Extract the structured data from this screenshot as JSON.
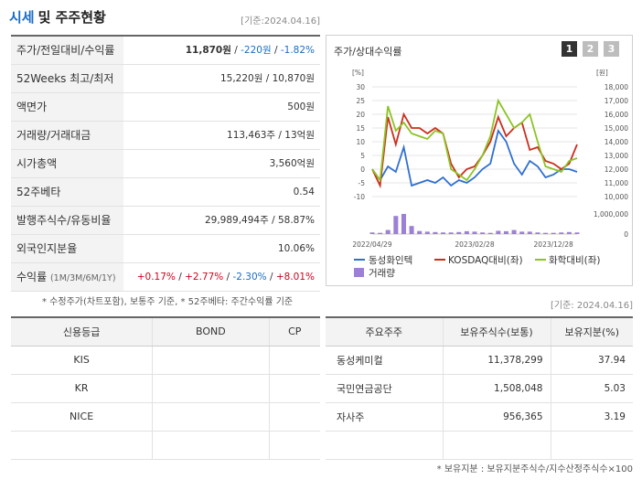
{
  "header": {
    "title_main": "시세",
    "title_rest": "및 주주현황",
    "date": "[기준:2024.04.16]"
  },
  "info_rows": [
    {
      "label": "주가/전일대비/수익률",
      "v1": "11,870원",
      "v2": "-220원",
      "v3": "-1.82%"
    },
    {
      "label": "52Weeks 최고/최저",
      "value": "15,220원 / 10,870원"
    },
    {
      "label": "액면가",
      "value": "500원"
    },
    {
      "label": "거래량/거래대금",
      "value": "113,463주 / 13억원"
    },
    {
      "label": "시가총액",
      "value": "3,560억원"
    },
    {
      "label": "52주베타",
      "value": "0.54"
    },
    {
      "label": "발행주식수/유동비율",
      "value": "29,989,494주 / 58.87%"
    },
    {
      "label": "외국인지분율",
      "value": "10.06%"
    },
    {
      "label": "수익률",
      "label_sub": "(1M/3M/6M/1Y)",
      "r1": "+0.17%",
      "r2": "+2.77%",
      "r3": "-2.30%",
      "r4": "+8.01%"
    }
  ],
  "note1": "* 수정주가(차트포함), 보통주 기준, * 52주베타: 주간수익률 기준",
  "chart": {
    "title": "주가/상대수익률",
    "tabs": [
      "1",
      "2",
      "3"
    ],
    "left_unit": "[%]",
    "right_unit": "[원]",
    "legend": {
      "s1": "동성화인텍",
      "s2": "KOSDAQ대비(좌)",
      "s3": "화학대비(좌)",
      "s4": "거래량"
    }
  },
  "chart_data": {
    "type": "line",
    "x_ticks": [
      "2022/04/29",
      "2023/02/28",
      "2023/12/28"
    ],
    "left_axis": {
      "ticks": [
        "30",
        "25",
        "20",
        "15",
        "10",
        "5",
        "0",
        "-5",
        "-10"
      ],
      "range": [
        -10,
        30
      ]
    },
    "right_axis": {
      "ticks": [
        "18,000",
        "17,000",
        "16,000",
        "15,000",
        "14,000",
        "13,000",
        "12,000",
        "11,000",
        "10,000"
      ],
      "range": [
        10000,
        18000
      ]
    },
    "volume_axis": {
      "ticks": [
        "1,000,000",
        "0"
      ]
    },
    "series": [
      {
        "name": "동성화인텍",
        "color": "#2f6fd0",
        "values": [
          0,
          -4,
          1,
          -1,
          8,
          -6,
          -5,
          -4,
          -5,
          -3,
          -6,
          -4,
          -5,
          -3,
          0,
          2,
          14,
          10,
          2,
          -2,
          3,
          1,
          -3,
          -2,
          0,
          0,
          -1
        ]
      },
      {
        "name": "KOSDAQ대비(좌)",
        "color": "#cc2e1e",
        "values": [
          0,
          -6,
          19,
          9,
          20,
          15,
          15,
          13,
          15,
          13,
          2,
          -3,
          0,
          1,
          5,
          10,
          19,
          12,
          15,
          17,
          7,
          8,
          3,
          2,
          0,
          2,
          9
        ]
      },
      {
        "name": "화학대비(좌)",
        "color": "#8cc424",
        "values": [
          0,
          -4,
          23,
          14,
          17,
          13,
          12,
          11,
          14,
          13,
          0,
          -2,
          -4,
          0,
          5,
          12,
          25,
          20,
          15,
          17,
          20,
          10,
          1,
          0,
          -1,
          3,
          4
        ]
      }
    ],
    "volume": [
      8,
      6,
      20,
      90,
      100,
      40,
      15,
      12,
      10,
      8,
      8,
      10,
      14,
      12,
      8,
      6,
      16,
      14,
      20,
      12,
      12,
      8,
      6,
      6,
      8,
      10,
      8
    ]
  },
  "note2": "[기준: 2024.04.16]",
  "credit": {
    "headers": [
      "신용등급",
      "BOND",
      "CP"
    ],
    "rows": [
      [
        "KIS",
        "",
        ""
      ],
      [
        "KR",
        "",
        ""
      ],
      [
        "NICE",
        "",
        ""
      ],
      [
        "",
        "",
        ""
      ]
    ]
  },
  "holders": {
    "headers": [
      "주요주주",
      "보유주식수(보통)",
      "보유지분(%)"
    ],
    "rows": [
      [
        "동성케미컬",
        "11,378,299",
        "37.94"
      ],
      [
        "국민연금공단",
        "1,508,048",
        "5.03"
      ],
      [
        "자사주",
        "956,365",
        "3.19"
      ],
      [
        "",
        "",
        ""
      ]
    ]
  },
  "note3": "* 보유지분 : 보유지분주식수/지수산정주식수×100"
}
